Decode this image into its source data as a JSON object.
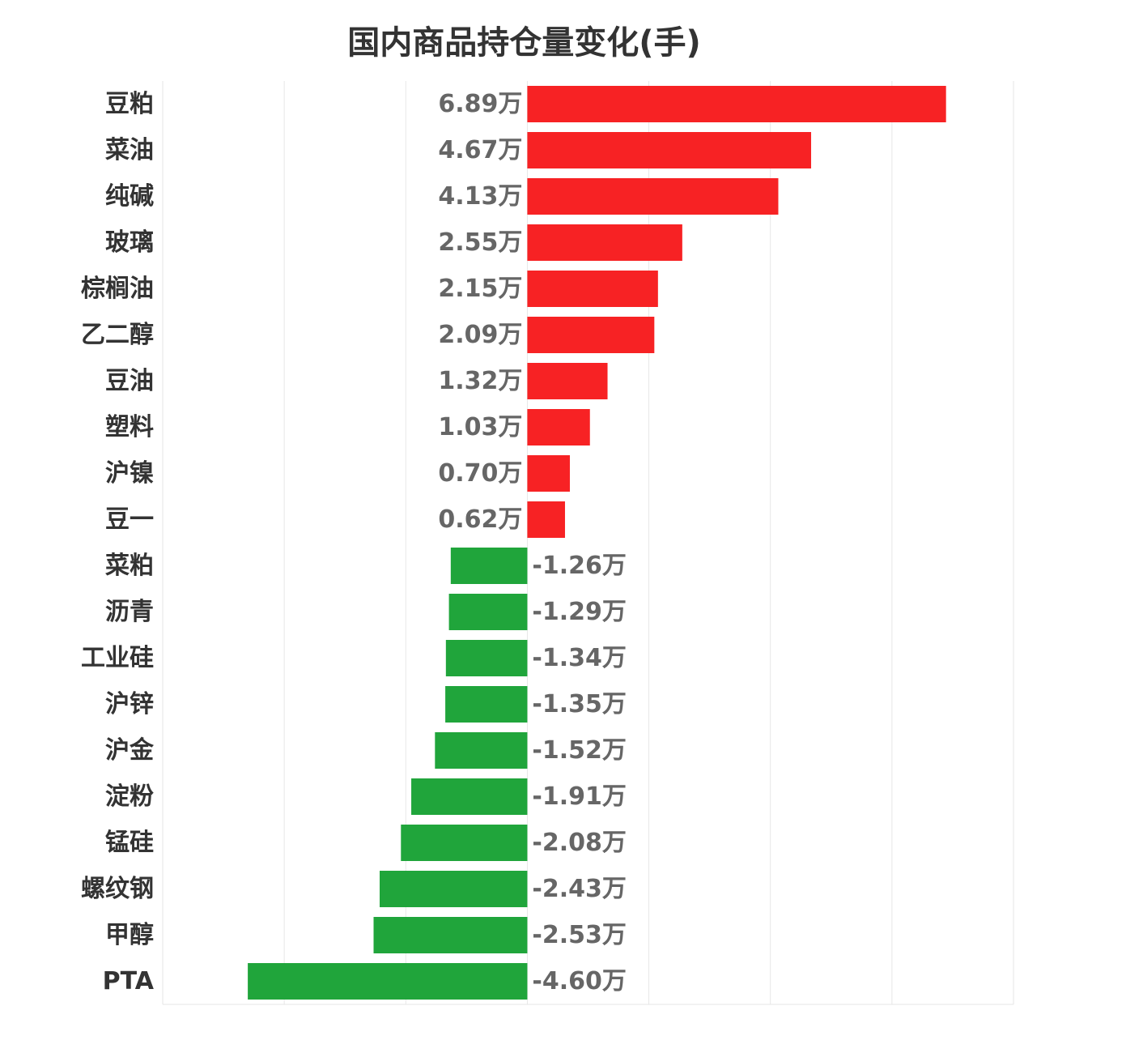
{
  "chart_data": {
    "type": "bar",
    "orientation": "horizontal",
    "title": "国内商品持仓量变化(手)",
    "xlabel": "",
    "ylabel": "",
    "categories": [
      "豆粕",
      "菜油",
      "纯碱",
      "玻璃",
      "棕榈油",
      "乙二醇",
      "豆油",
      "塑料",
      "沪镍",
      "豆一",
      "菜粕",
      "沥青",
      "工业硅",
      "沪锌",
      "沪金",
      "淀粉",
      "锰硅",
      "螺纹钢",
      "甲醇",
      "PTA"
    ],
    "values": [
      6.89,
      4.67,
      4.13,
      2.55,
      2.15,
      2.09,
      1.32,
      1.03,
      0.7,
      0.62,
      -1.26,
      -1.29,
      -1.34,
      -1.35,
      -1.52,
      -1.91,
      -2.08,
      -2.43,
      -2.53,
      -4.6
    ],
    "value_labels": [
      "6.89万",
      "4.67万",
      "4.13万",
      "2.55万",
      "2.15万",
      "2.09万",
      "1.32万",
      "1.03万",
      "0.70万",
      "0.62万",
      "-1.26万",
      "-1.29万",
      "-1.34万",
      "-1.35万",
      "-1.52万",
      "-1.91万",
      "-2.08万",
      "-2.43万",
      "-2.53万",
      "-4.60万"
    ],
    "unit": "万",
    "xlim": [
      -6,
      8
    ],
    "grid": true,
    "colors": {
      "positive": "#f72224",
      "negative": "#20a53b",
      "grid": "#e6e6e6"
    }
  }
}
